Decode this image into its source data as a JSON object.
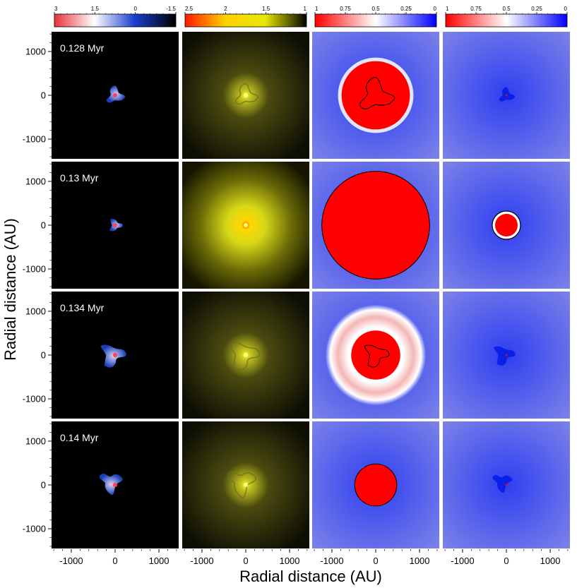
{
  "chart_data": {
    "type": "heatmap",
    "title": "",
    "xlabel": "Radial distance (AU)",
    "ylabel": "Radial distance (AU)",
    "xlim": [
      -1450,
      1450
    ],
    "ylim": [
      -1450,
      1450
    ],
    "x_ticks": [
      -1000,
      0,
      1000
    ],
    "y_ticks": [
      1000,
      0,
      -1000
    ],
    "x_tick_labels": [
      "-1000",
      "0",
      "1000"
    ],
    "y_tick_labels": [
      "1000",
      "0",
      "-1000"
    ],
    "rows": [
      {
        "time_label": "0.128 Myr",
        "hot_region_radius_au": 780,
        "ring_radius_au": 0
      },
      {
        "time_label": "0.13 Myr",
        "hot_region_radius_au": 1230,
        "ring_radius_au": 0
      },
      {
        "time_label": "0.134 Myr",
        "hot_region_radius_au": 560,
        "ring_radius_au": 1150
      },
      {
        "time_label": "0.14 Myr",
        "hot_region_radius_au": 480,
        "ring_radius_au": 0
      }
    ],
    "colorbars": [
      {
        "tick_labels": [
          "3",
          "1.5",
          "0",
          "-1.5"
        ],
        "colors": [
          "#e8303a",
          "#ffffff",
          "#1a3fcf",
          "#000000"
        ]
      },
      {
        "tick_labels": [
          "2.5",
          "2",
          "1.5",
          "1"
        ],
        "colors": [
          "#ff1a00",
          "#ffd000",
          "#e8e800",
          "#000000"
        ]
      },
      {
        "tick_labels": [
          "1",
          "0.75",
          "0.5",
          "0.25",
          "0"
        ],
        "colors": [
          "#ff0000",
          "#ffffff",
          "#0000ff"
        ]
      },
      {
        "tick_labels": [
          "1",
          "0.75",
          "0.5",
          "0.25",
          "0"
        ],
        "colors": [
          "#ff0000",
          "#ffffff",
          "#0000ff"
        ]
      }
    ]
  }
}
